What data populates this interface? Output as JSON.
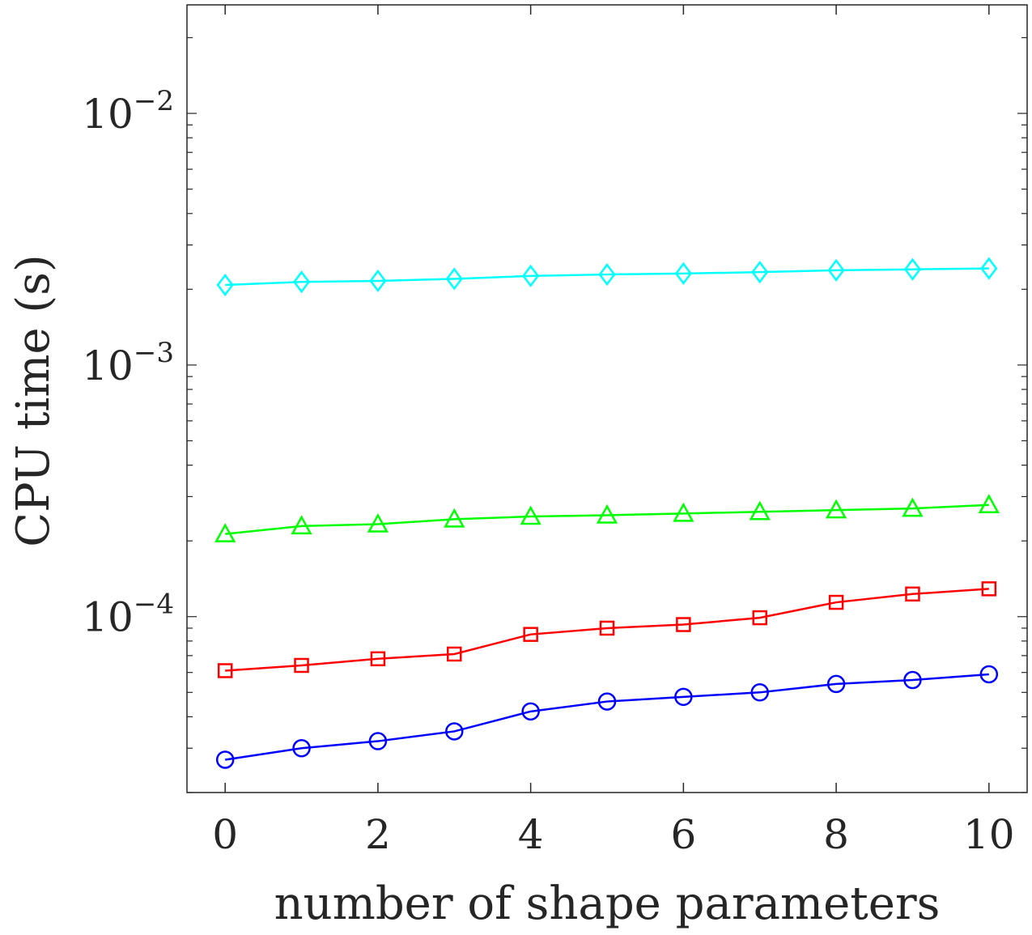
{
  "chart_data": {
    "type": "line",
    "title": "",
    "xlabel": "number of shape parameters",
    "ylabel": "CPU time (s)",
    "xlim": [
      -0.5,
      10.5
    ],
    "ylim": [
      2e-05,
      0.027
    ],
    "y_scale": "log",
    "grid": false,
    "legend": "none",
    "x": [
      0,
      1,
      2,
      3,
      4,
      5,
      6,
      7,
      8,
      9,
      10
    ],
    "x_ticks": [
      0,
      2,
      4,
      6,
      8,
      10
    ],
    "x_tick_labels": [
      "0",
      "2",
      "4",
      "6",
      "8",
      "10"
    ],
    "y_ticks": [
      {
        "value": 0.0001,
        "base": "10",
        "exp": "−4"
      },
      {
        "value": 0.001,
        "base": "10",
        "exp": "−3"
      },
      {
        "value": 0.01,
        "base": "10",
        "exp": "−2"
      }
    ],
    "series": [
      {
        "color": "#00ffff",
        "marker": "diamond",
        "values": [
          0.00208,
          0.00214,
          0.00216,
          0.0022,
          0.00226,
          0.00229,
          0.00231,
          0.00234,
          0.00238,
          0.0024,
          0.00242
        ]
      },
      {
        "color": "#00ff00",
        "marker": "triangle",
        "values": [
          0.000213,
          0.000229,
          0.000233,
          0.000244,
          0.00025,
          0.000253,
          0.000257,
          0.000261,
          0.000265,
          0.000269,
          0.000278
        ]
      },
      {
        "color": "#ff0000",
        "marker": "square",
        "values": [
          6.1e-05,
          6.4e-05,
          6.8e-05,
          7.1e-05,
          8.5e-05,
          9e-05,
          9.3e-05,
          9.9e-05,
          0.000114,
          0.000123,
          0.000129
        ]
      },
      {
        "color": "#0000ff",
        "marker": "circle",
        "values": [
          2.7e-05,
          3e-05,
          3.2e-05,
          3.5e-05,
          4.2e-05,
          4.6e-05,
          4.8e-05,
          5e-05,
          5.4e-05,
          5.6e-05,
          5.9e-05
        ]
      }
    ]
  }
}
